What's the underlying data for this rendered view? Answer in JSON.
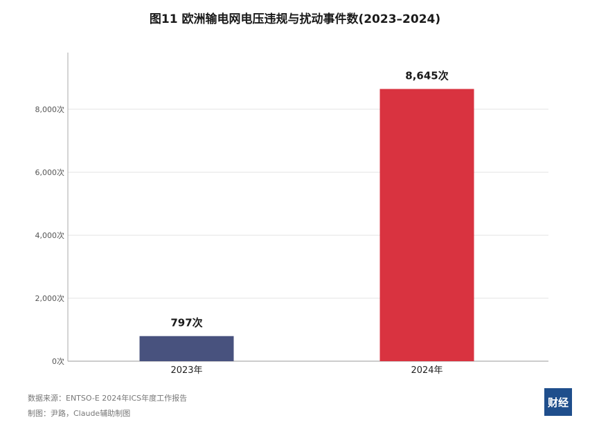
{
  "chart_data": {
    "type": "bar",
    "title": "图11  欧洲输电网电压违规与扰动事件数(2023–2024)",
    "categories": [
      "2023年",
      "2024年"
    ],
    "values": [
      797,
      8645
    ],
    "data_labels": [
      "797次",
      "8,645次"
    ],
    "bar_colors": [
      "#48527e",
      "#d93340"
    ],
    "ylim": [
      0,
      9800
    ],
    "yticks": [
      0,
      2000,
      4000,
      6000,
      8000
    ],
    "ytick_labels": [
      "0次",
      "2,000次",
      "4,000次",
      "6,000次",
      "8,000次"
    ],
    "grid": true
  },
  "footer": {
    "source": "数据来源：ENTSO-E 2024年ICS年度工作报告",
    "credit": "制图：尹路，Claude辅助制图"
  },
  "logo": {
    "text": "财经"
  }
}
